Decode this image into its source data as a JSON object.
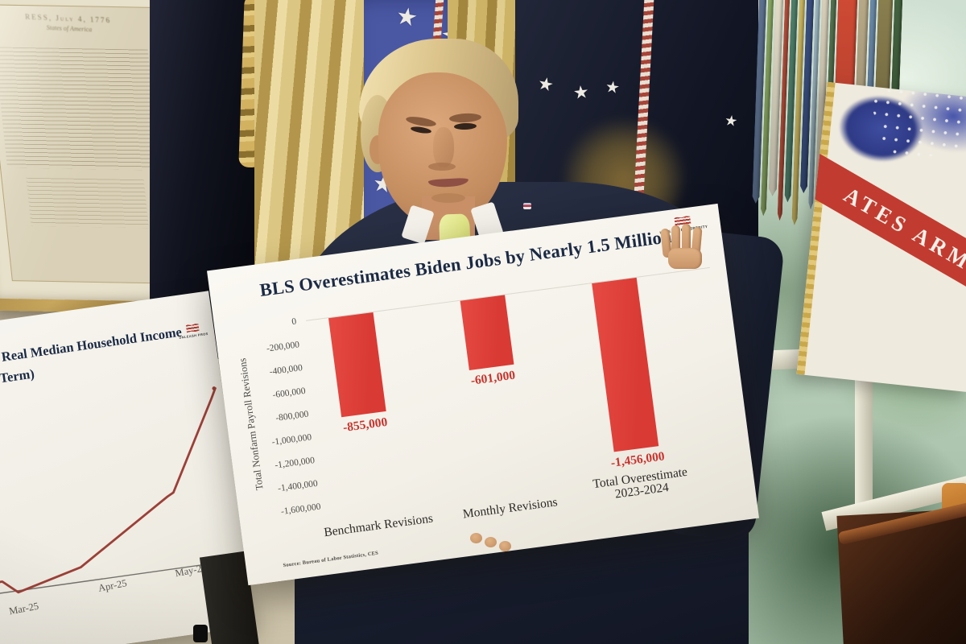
{
  "scene": {
    "description": "Man in a navy suit and yellow tie holding a large white chart poster in the Oval Office, with a second chart poster at lower left, framed Declaration of Independence, flags and a window behind him",
    "framed_document_header": "RESS, July 4, 1776",
    "framed_document_subheader": "States of America",
    "army_flag_band_text": "ATES ARMY"
  },
  "main_poster": {
    "title": "BLS Overestimates Biden Jobs by Nearly 1.5 Million",
    "logo_text": "UNLEASH PROSPERITY",
    "y_axis_title": "Total Nonfarm Payroll Revisions",
    "y_ticks": [
      "0",
      "-200,000",
      "-400,000",
      "-600,000",
      "-800,000",
      "-1,000,000",
      "-1,200,000",
      "-1,400,000",
      "-1,600,000"
    ],
    "bars": [
      {
        "category_lines": [
          "Benchmark Revisions"
        ],
        "value": -855000,
        "label": "-855,000"
      },
      {
        "category_lines": [
          "Monthly Revisions"
        ],
        "value": -601000,
        "label": "-601,000"
      },
      {
        "category_lines": [
          "Total Overestimate",
          "2023-2024"
        ],
        "value": -1456000,
        "label": "-1,456,000"
      }
    ],
    "source": "Source: Bureau of Labor Statistics, CES"
  },
  "left_poster": {
    "title_line1": "Real Median Household Income",
    "title_line2": "Term)",
    "logo_text": "UNLEASH PROS",
    "x_labels": [
      "Mar-25",
      "Apr-25",
      "May-25"
    ]
  },
  "chart_data": [
    {
      "type": "bar",
      "title": "BLS Overestimates Biden Jobs by Nearly 1.5 Million",
      "categories": [
        "Benchmark Revisions",
        "Monthly Revisions",
        "Total Overestimate 2023-2024"
      ],
      "values": [
        -855000,
        -601000,
        -1456000
      ],
      "data_labels": [
        "-855,000",
        "-601,000",
        "-1,456,000"
      ],
      "xlabel": "",
      "ylabel": "Total Nonfarm Payroll Revisions",
      "ylim": [
        -1600000,
        0
      ],
      "ytick_step": 200000,
      "bar_color": "#e2423c",
      "grid": false,
      "legend": false,
      "source": "Source: Bureau of Labor Statistics, CES"
    },
    {
      "type": "line",
      "title": "Real Median Household Income (title partially cropped; second line ends in 'Term)')",
      "x": [
        "Mar-25",
        "Apr-25",
        "May-25"
      ],
      "values": null,
      "trend": "line dips to touch the axis near Mar-25 then rises steeply through Apr-25 and May-25; y-axis cropped out of frame",
      "line_color": "#9c4038",
      "legend": false
    }
  ],
  "icons": {
    "logo_flag": "us-flag-icon"
  },
  "colors": {
    "bar_red": "#e2423c",
    "value_label_red": "#c8342e",
    "title_navy": "#1b2a45",
    "poster_white": "#f6f4ee",
    "suit_navy": "#1e2534",
    "tie_yellow": "#e3e98e",
    "army_band_red": "#c23b30"
  }
}
